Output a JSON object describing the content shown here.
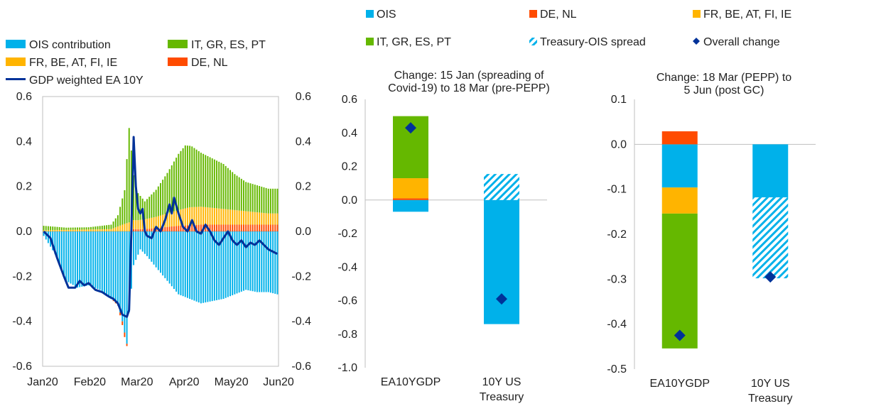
{
  "colors": {
    "ois": "#00b1ea",
    "it_gr_es_pt": "#65b800",
    "fr_be_at_fi_ie": "#ffb400",
    "de_nl": "#ff4b00",
    "gdp_line": "#003299",
    "overall_marker": "#003299",
    "spread_hatch": "#00b1ea"
  },
  "legend_left": [
    {
      "label": "OIS contribution",
      "key": "ois",
      "kind": "box"
    },
    {
      "label": "IT, GR, ES, PT",
      "key": "it_gr_es_pt",
      "kind": "box"
    },
    {
      "label": "FR, BE, AT, FI, IE",
      "key": "fr_be_at_fi_ie",
      "kind": "box"
    },
    {
      "label": "DE, NL",
      "key": "de_nl",
      "kind": "box"
    },
    {
      "label": "GDP weighted EA 10Y",
      "key": "gdp_line",
      "kind": "line"
    }
  ],
  "legend_right": [
    {
      "label": "OIS",
      "key": "ois",
      "kind": "box"
    },
    {
      "label": "DE, NL",
      "key": "de_nl",
      "kind": "box"
    },
    {
      "label": "FR, BE, AT, FI, IE",
      "key": "fr_be_at_fi_ie",
      "kind": "box"
    },
    {
      "label": "IT, GR, ES, PT",
      "key": "it_gr_es_pt",
      "kind": "box"
    },
    {
      "label": "Treasury-OIS spread",
      "key": "spread_hatch",
      "kind": "hatch"
    },
    {
      "label": "Overall change",
      "key": "overall_marker",
      "kind": "diamond"
    }
  ],
  "chart_data": [
    {
      "type": "bar",
      "stacked": true,
      "overlay_line": "GDP weighted EA 10Y",
      "x_tick_labels": [
        "Jan20",
        "Feb20",
        "Mar20",
        "Apr20",
        "May20",
        "Jun20"
      ],
      "ylim": [
        -0.6,
        0.6
      ],
      "y_ticks": [
        "0.6",
        "0.4",
        "0.2",
        "0.0",
        "-0.2",
        "-0.4",
        "-0.6"
      ],
      "y_ticks_right": [
        "0.6",
        "0.4",
        "0.2",
        "0.0",
        "-0.2",
        "-0.4",
        "-0.6"
      ],
      "day_count": 105,
      "series": [
        {
          "name": "OIS contribution",
          "key": "ois",
          "anchors": [
            [
              0,
              -0.02
            ],
            [
              5,
              -0.1
            ],
            [
              10,
              -0.22
            ],
            [
              15,
              -0.25
            ],
            [
              20,
              -0.24
            ],
            [
              25,
              -0.26
            ],
            [
              30,
              -0.3
            ],
            [
              33,
              -0.32
            ],
            [
              35,
              -0.4
            ],
            [
              37,
              -0.5
            ],
            [
              38,
              -0.36
            ],
            [
              40,
              -0.15
            ],
            [
              43,
              -0.08
            ],
            [
              46,
              -0.11
            ],
            [
              50,
              -0.16
            ],
            [
              55,
              -0.22
            ],
            [
              60,
              -0.28
            ],
            [
              65,
              -0.3
            ],
            [
              70,
              -0.32
            ],
            [
              75,
              -0.31
            ],
            [
              80,
              -0.3
            ],
            [
              85,
              -0.28
            ],
            [
              90,
              -0.26
            ],
            [
              95,
              -0.27
            ],
            [
              100,
              -0.27
            ],
            [
              104,
              -0.28
            ]
          ]
        },
        {
          "name": "DE, NL",
          "key": "de_nl",
          "anchors": [
            [
              0,
              0.0
            ],
            [
              30,
              0.0
            ],
            [
              36,
              -0.02
            ],
            [
              39,
              0.01
            ],
            [
              45,
              0.01
            ],
            [
              50,
              0.015
            ],
            [
              60,
              0.025
            ],
            [
              70,
              0.03
            ],
            [
              80,
              0.03
            ],
            [
              90,
              0.03
            ],
            [
              100,
              0.03
            ],
            [
              104,
              0.03
            ]
          ]
        },
        {
          "name": "FR, BE, AT, FI, IE",
          "key": "fr_be_at_fi_ie",
          "anchors": [
            [
              0,
              0.005
            ],
            [
              30,
              0.01
            ],
            [
              35,
              0.03
            ],
            [
              38,
              0.04
            ],
            [
              42,
              0.04
            ],
            [
              50,
              0.05
            ],
            [
              55,
              0.06
            ],
            [
              60,
              0.07
            ],
            [
              65,
              0.08
            ],
            [
              70,
              0.08
            ],
            [
              80,
              0.07
            ],
            [
              90,
              0.06
            ],
            [
              100,
              0.05
            ],
            [
              104,
              0.05
            ]
          ]
        },
        {
          "name": "IT, GR, ES, PT",
          "key": "it_gr_es_pt",
          "anchors": [
            [
              0,
              0.02
            ],
            [
              10,
              0.01
            ],
            [
              20,
              0.01
            ],
            [
              30,
              0.02
            ],
            [
              33,
              0.05
            ],
            [
              36,
              0.15
            ],
            [
              38,
              0.42
            ],
            [
              40,
              0.2
            ],
            [
              42,
              0.12
            ],
            [
              45,
              0.08
            ],
            [
              50,
              0.12
            ],
            [
              55,
              0.18
            ],
            [
              60,
              0.25
            ],
            [
              63,
              0.28
            ],
            [
              66,
              0.27
            ],
            [
              70,
              0.24
            ],
            [
              75,
              0.22
            ],
            [
              80,
              0.2
            ],
            [
              85,
              0.16
            ],
            [
              90,
              0.13
            ],
            [
              95,
              0.12
            ],
            [
              100,
              0.11
            ],
            [
              104,
              0.11
            ]
          ]
        }
      ],
      "line": {
        "name": "GDP weighted EA 10Y",
        "key": "gdp_line",
        "anchors": [
          [
            0,
            0.0
          ],
          [
            3,
            -0.03
          ],
          [
            6,
            -0.12
          ],
          [
            9,
            -0.2
          ],
          [
            11,
            -0.25
          ],
          [
            14,
            -0.25
          ],
          [
            16,
            -0.22
          ],
          [
            18,
            -0.24
          ],
          [
            20,
            -0.23
          ],
          [
            23,
            -0.26
          ],
          [
            26,
            -0.27
          ],
          [
            29,
            -0.29
          ],
          [
            31,
            -0.3
          ],
          [
            33,
            -0.32
          ],
          [
            35,
            -0.37
          ],
          [
            37,
            -0.38
          ],
          [
            38,
            -0.35
          ],
          [
            39,
            0.0
          ],
          [
            40,
            0.42
          ],
          [
            41,
            0.2
          ],
          [
            42,
            0.1
          ],
          [
            43,
            0.08
          ],
          [
            44,
            0.1
          ],
          [
            45,
            0.0
          ],
          [
            46,
            -0.02
          ],
          [
            48,
            -0.03
          ],
          [
            50,
            0.02
          ],
          [
            52,
            0.0
          ],
          [
            54,
            0.05
          ],
          [
            56,
            0.12
          ],
          [
            57,
            0.08
          ],
          [
            58,
            0.15
          ],
          [
            60,
            0.08
          ],
          [
            62,
            0.02
          ],
          [
            64,
            0.0
          ],
          [
            66,
            0.05
          ],
          [
            68,
            0.0
          ],
          [
            70,
            -0.01
          ],
          [
            72,
            0.03
          ],
          [
            74,
            0.0
          ],
          [
            76,
            -0.04
          ],
          [
            78,
            -0.06
          ],
          [
            80,
            -0.03
          ],
          [
            82,
            0.0
          ],
          [
            84,
            -0.04
          ],
          [
            86,
            -0.06
          ],
          [
            88,
            -0.04
          ],
          [
            90,
            -0.07
          ],
          [
            92,
            -0.05
          ],
          [
            94,
            -0.06
          ],
          [
            96,
            -0.04
          ],
          [
            98,
            -0.06
          ],
          [
            100,
            -0.08
          ],
          [
            102,
            -0.09
          ],
          [
            104,
            -0.1
          ]
        ]
      }
    },
    {
      "type": "bar",
      "stacked": true,
      "title": "Change: 15 Jan (spreading of Covid-19) to 18 Mar (pre-PEPP)",
      "title_lines": [
        "Change: 15 Jan (spreading of",
        "Covid-19) to 18 Mar (pre-PEPP)"
      ],
      "categories": [
        "EA10YGDP",
        "10Y US Treasury"
      ],
      "category_lines": [
        [
          "EA10YGDP"
        ],
        [
          "10Y US",
          "Treasury"
        ]
      ],
      "ylim": [
        -1.0,
        0.6
      ],
      "y_ticks": [
        "0.6",
        "0.4",
        "0.2",
        "0.0",
        "-0.2",
        "-0.4",
        "-0.6",
        "-0.8",
        "-1.0"
      ],
      "series": [
        {
          "name": "OIS",
          "key": "ois",
          "values": [
            -0.07,
            -0.74
          ]
        },
        {
          "name": "DE, NL",
          "key": "de_nl",
          "values": [
            0.01,
            0
          ]
        },
        {
          "name": "FR, BE, AT, FI, IE",
          "key": "fr_be_at_fi_ie",
          "values": [
            0.12,
            0
          ]
        },
        {
          "name": "IT, GR, ES, PT",
          "key": "it_gr_es_pt",
          "values": [
            0.37,
            0
          ]
        },
        {
          "name": "Treasury-OIS spread",
          "key": "spread_hatch",
          "values": [
            0,
            0.155
          ]
        }
      ],
      "overall_change": [
        0.43,
        -0.59
      ]
    },
    {
      "type": "bar",
      "stacked": true,
      "title": "Change: 18 Mar (PEPP) to 5 Jun (post GC)",
      "title_lines": [
        "Change: 18 Mar (PEPP) to",
        "5 Jun (post GC)"
      ],
      "categories": [
        "EA10YGDP",
        "10Y US Treasury"
      ],
      "category_lines": [
        [
          "EA10YGDP"
        ],
        [
          "10Y US",
          "Treasury"
        ]
      ],
      "ylim": [
        -0.5,
        0.1
      ],
      "y_ticks": [
        "0.1",
        "0.0",
        "-0.1",
        "-0.2",
        "-0.3",
        "-0.4",
        "-0.5"
      ],
      "series": [
        {
          "name": "OIS",
          "key": "ois",
          "values": [
            -0.096,
            -0.118
          ]
        },
        {
          "name": "DE, NL",
          "key": "de_nl",
          "values": [
            0.029,
            0
          ]
        },
        {
          "name": "FR, BE, AT, FI, IE",
          "key": "fr_be_at_fi_ie",
          "values": [
            -0.058,
            0
          ]
        },
        {
          "name": "IT, GR, ES, PT",
          "key": "it_gr_es_pt",
          "values": [
            -0.3,
            0
          ]
        },
        {
          "name": "Treasury-OIS spread",
          "key": "spread_hatch",
          "values": [
            0,
            -0.18
          ]
        }
      ],
      "overall_change": [
        -0.425,
        -0.295
      ]
    }
  ]
}
